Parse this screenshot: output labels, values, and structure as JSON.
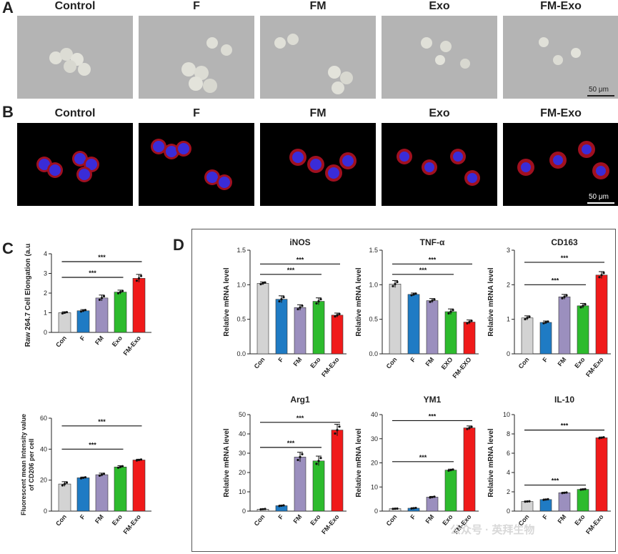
{
  "panels": {
    "A": "A",
    "B": "B",
    "C": "C",
    "D": "D"
  },
  "groups": [
    "Control",
    "F",
    "FM",
    "Exo",
    "FM-Exo"
  ],
  "scale_label": "50 μm",
  "watermark": "公众号 · 英拜生物",
  "colors": {
    "Con": "#d3d3d3",
    "F": "#1f7bc4",
    "FM": "#9b8fbe",
    "Exo": "#2dbb2d",
    "FM-Exo": "#f01a1a",
    "brightfield_bg": "#b4b4b4",
    "fluor_bg": "#000000"
  },
  "sig": "***",
  "chart_data": [
    {
      "id": "c1",
      "type": "bar",
      "title": "",
      "ylabel": "Raw 264.7 Cell Elongation (a.u.)",
      "categories": [
        "Con",
        "F",
        "FM",
        "Exo",
        "FM-Exo"
      ],
      "values": [
        1.0,
        1.1,
        1.75,
        2.05,
        2.75
      ],
      "errors": [
        0.05,
        0.06,
        0.15,
        0.1,
        0.2
      ],
      "ylim": [
        0,
        4
      ],
      "yticks": [
        0,
        1,
        2,
        3,
        4
      ],
      "sig": [
        {
          "from": 0,
          "to": 3,
          "level": 2.8
        },
        {
          "from": 0,
          "to": 4,
          "level": 3.6
        }
      ]
    },
    {
      "id": "c2",
      "type": "bar",
      "title": "",
      "ylabel": "Fluorescent mean Intensity value of CD206 per cell",
      "categories": [
        "Con",
        "F",
        "FM",
        "Exo",
        "FM-Exo"
      ],
      "values": [
        17.5,
        21.5,
        23.5,
        28.5,
        33
      ],
      "errors": [
        1.5,
        0.5,
        1.0,
        0.8,
        0.5
      ],
      "ylim": [
        0,
        60
      ],
      "yticks": [
        0,
        20,
        40,
        60
      ],
      "sig": [
        {
          "from": 0,
          "to": 3,
          "level": 40
        },
        {
          "from": 0,
          "to": 4,
          "level": 55
        }
      ]
    },
    {
      "id": "d1",
      "type": "bar",
      "title": "iNOS",
      "ylabel": "Relative mRNA level",
      "categories": [
        "Con",
        "F",
        "FM",
        "Exo",
        "FM-Exo"
      ],
      "values": [
        1.02,
        0.79,
        0.67,
        0.76,
        0.56
      ],
      "errors": [
        0.02,
        0.05,
        0.04,
        0.05,
        0.03
      ],
      "ylim": [
        0,
        1.5
      ],
      "yticks": [
        0.0,
        0.5,
        1.0,
        1.5
      ],
      "sig": [
        {
          "from": 0,
          "to": 3,
          "level": 1.15
        },
        {
          "from": 0,
          "to": 4,
          "level": 1.3
        }
      ]
    },
    {
      "id": "d2",
      "type": "bar",
      "title": "TNF-α",
      "ylabel": "Relative mRNA level",
      "categories": [
        "Con",
        "F",
        "FM",
        "EXO",
        "FM-EXO"
      ],
      "values": [
        1.01,
        0.86,
        0.77,
        0.61,
        0.46
      ],
      "errors": [
        0.05,
        0.02,
        0.03,
        0.04,
        0.03
      ],
      "ylim": [
        0,
        1.5
      ],
      "yticks": [
        0.0,
        0.5,
        1.0,
        1.5
      ],
      "sig": [
        {
          "from": 0,
          "to": 3,
          "level": 1.15
        },
        {
          "from": 0,
          "to": 4,
          "level": 1.3
        }
      ]
    },
    {
      "id": "d3",
      "type": "bar",
      "title": "CD163",
      "ylabel": "Relative mRNA level",
      "categories": [
        "Con",
        "F",
        "FM",
        "Exo",
        "FM-Exo"
      ],
      "values": [
        1.04,
        0.91,
        1.65,
        1.39,
        2.28
      ],
      "errors": [
        0.06,
        0.04,
        0.07,
        0.07,
        0.1
      ],
      "ylim": [
        0,
        3
      ],
      "yticks": [
        0,
        1,
        2,
        3
      ],
      "sig": [
        {
          "from": 0,
          "to": 3,
          "level": 2.0
        },
        {
          "from": 0,
          "to": 4,
          "level": 2.65
        }
      ]
    },
    {
      "id": "d4",
      "type": "bar",
      "title": "Arg1",
      "ylabel": "Relative mRNA level",
      "categories": [
        "Con",
        "F",
        "FM",
        "Exo",
        "FM-Exo"
      ],
      "values": [
        1,
        2.8,
        28,
        26,
        42
      ],
      "errors": [
        0.2,
        0.3,
        2.5,
        2.5,
        3.0
      ],
      "ylim": [
        0,
        50
      ],
      "yticks": [
        0,
        10,
        20,
        30,
        40,
        50
      ],
      "sig": [
        {
          "from": 0,
          "to": 3,
          "level": 33
        },
        {
          "from": 0,
          "to": 4,
          "level": 46
        }
      ]
    },
    {
      "id": "d5",
      "type": "bar",
      "title": "YM1",
      "ylabel": "Relative mRNA level",
      "categories": [
        "Con",
        "F",
        "FM",
        "Exo",
        "FM-Exo"
      ],
      "values": [
        1,
        1.2,
        5.8,
        17,
        34.5
      ],
      "errors": [
        0.1,
        0.2,
        0.3,
        0.4,
        0.8
      ],
      "ylim": [
        0,
        40
      ],
      "yticks": [
        0,
        10,
        20,
        30,
        40
      ],
      "sig": [
        {
          "from": 0,
          "to": 3,
          "level": 20.5
        },
        {
          "from": 0,
          "to": 4,
          "level": 37.5
        }
      ]
    },
    {
      "id": "d6",
      "type": "bar",
      "title": "IL-10",
      "ylabel": "Relative mRNA level",
      "categories": [
        "Con",
        "F",
        "FM",
        "Exo",
        "FM-Exo"
      ],
      "values": [
        1.0,
        1.2,
        1.9,
        2.25,
        7.6
      ],
      "errors": [
        0.03,
        0.05,
        0.05,
        0.05,
        0.08
      ],
      "ylim": [
        0,
        10
      ],
      "yticks": [
        0,
        2,
        4,
        6,
        8,
        10
      ],
      "sig": [
        {
          "from": 0,
          "to": 3,
          "level": 2.7
        },
        {
          "from": 0,
          "to": 4,
          "level": 8.4
        }
      ]
    }
  ]
}
